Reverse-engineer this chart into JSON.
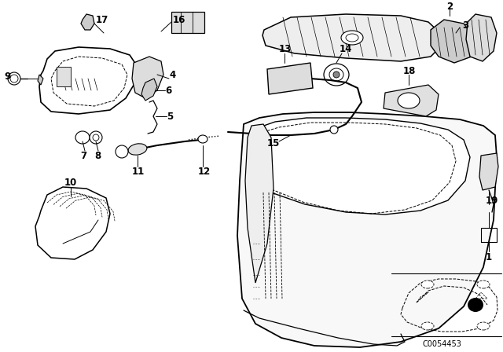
{
  "bg_color": "#ffffff",
  "line_color": "#000000",
  "diagram_code_id": "C0054453"
}
